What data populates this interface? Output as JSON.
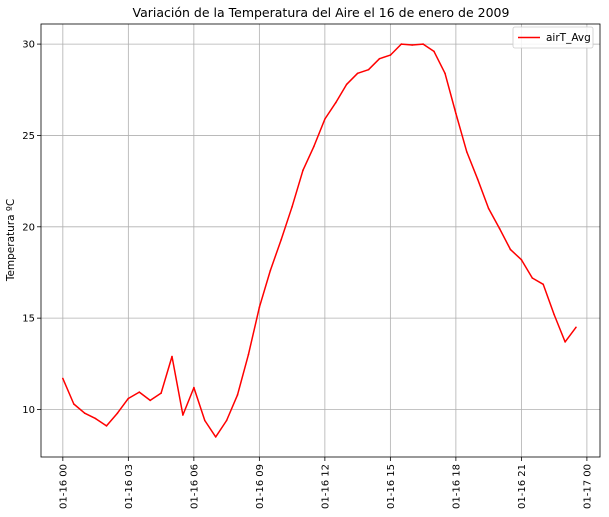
{
  "chart_data": {
    "type": "line",
    "title": "Variación de la Temperatura del Aire el 16 de enero de 2009",
    "xlabel": "",
    "ylabel": "Temperatura ºC",
    "xlim_hours": [
      -1.0,
      24.6
    ],
    "ylim": [
      7.4,
      31.1
    ],
    "grid": true,
    "legend_position": "upper right",
    "x_ticks": [
      {
        "hour": 0,
        "label": "01-16 00"
      },
      {
        "hour": 3,
        "label": "01-16 03"
      },
      {
        "hour": 6,
        "label": "01-16 06"
      },
      {
        "hour": 9,
        "label": "01-16 09"
      },
      {
        "hour": 12,
        "label": "01-16 12"
      },
      {
        "hour": 15,
        "label": "01-16 15"
      },
      {
        "hour": 18,
        "label": "01-16 18"
      },
      {
        "hour": 21,
        "label": "01-16 21"
      },
      {
        "hour": 24,
        "label": "01-17 00"
      }
    ],
    "y_ticks": [
      10,
      15,
      20,
      25,
      30
    ],
    "series": [
      {
        "name": "airT_Avg",
        "color": "#ff0000",
        "x_hours": [
          0,
          0.5,
          1,
          1.5,
          2,
          2.5,
          3,
          3.5,
          4,
          4.5,
          5,
          5.5,
          6,
          6.5,
          7,
          7.5,
          8,
          8.5,
          9,
          9.5,
          10,
          10.5,
          11,
          11.5,
          12,
          12.5,
          13,
          13.5,
          14,
          14.5,
          15,
          15.5,
          16,
          16.5,
          17,
          17.5,
          18,
          18.5,
          19,
          19.5,
          20,
          20.5,
          21,
          21.5,
          22,
          22.5,
          23,
          23.5
        ],
        "values": [
          11.7,
          10.3,
          9.8,
          9.5,
          9.1,
          9.8,
          10.6,
          10.95,
          10.5,
          10.9,
          12.9,
          9.7,
          11.2,
          9.4,
          8.5,
          9.4,
          10.8,
          13.0,
          15.6,
          17.6,
          19.3,
          21.1,
          23.1,
          24.4,
          25.9,
          26.8,
          27.8,
          28.4,
          28.6,
          29.2,
          29.4,
          30.0,
          29.95,
          30.0,
          29.6,
          28.4,
          26.2,
          24.1,
          22.6,
          21.0,
          19.9,
          18.75,
          18.2,
          17.2,
          16.85,
          15.2,
          13.7,
          14.5
        ]
      }
    ]
  }
}
